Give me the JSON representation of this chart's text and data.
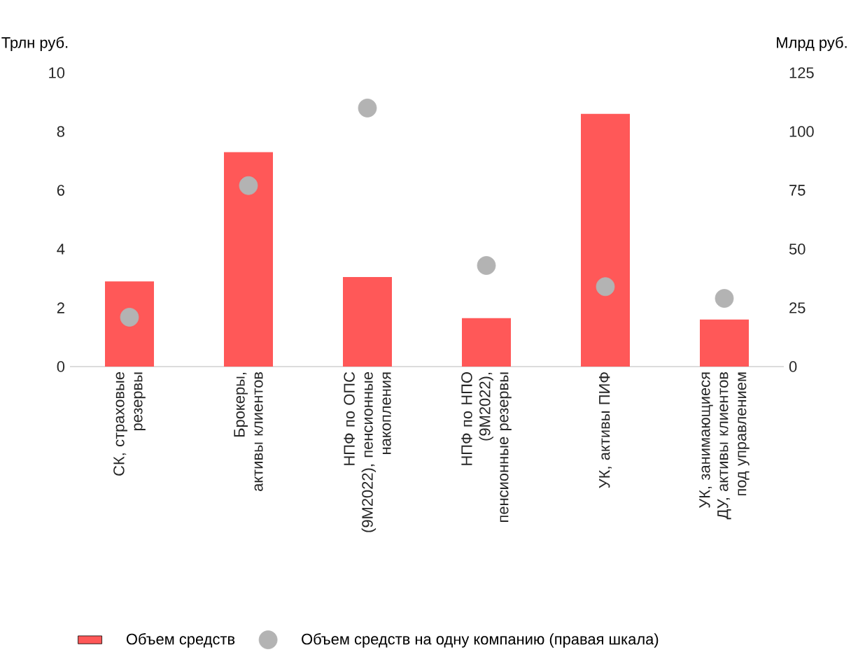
{
  "chart_data": {
    "type": "bar",
    "categories": [
      "СК, страховые резервы",
      "Брокеры, активы клиентов",
      "НПФ по ОПС (9М2022), пенсионные накопления",
      "НПФ по НПО (9М2022), пенсионные резервы",
      "УК, активы ПИФ",
      "УК, занимающиеся ДУ, активы клиентов под управлением"
    ],
    "series": [
      {
        "name": "Объем средств",
        "color": "#ff5858",
        "values": [
          2.9,
          7.3,
          3.05,
          1.65,
          8.6,
          1.6
        ]
      },
      {
        "name": "Объем средств на одну компанию (правая шкала)",
        "type": "scatter",
        "axis": "y2",
        "color": "#b3b3b3",
        "values": [
          21,
          77,
          110,
          43,
          34,
          29
        ]
      }
    ],
    "ylabel": "Трлн руб.",
    "y2label": "Млрд руб.",
    "ylim": [
      0,
      10
    ],
    "yticks": [
      0,
      2,
      4,
      6,
      8,
      10
    ],
    "y2lim": [
      0,
      125
    ],
    "y2ticks": [
      0,
      25,
      50,
      75,
      100,
      125
    ],
    "legend": "bottom"
  }
}
